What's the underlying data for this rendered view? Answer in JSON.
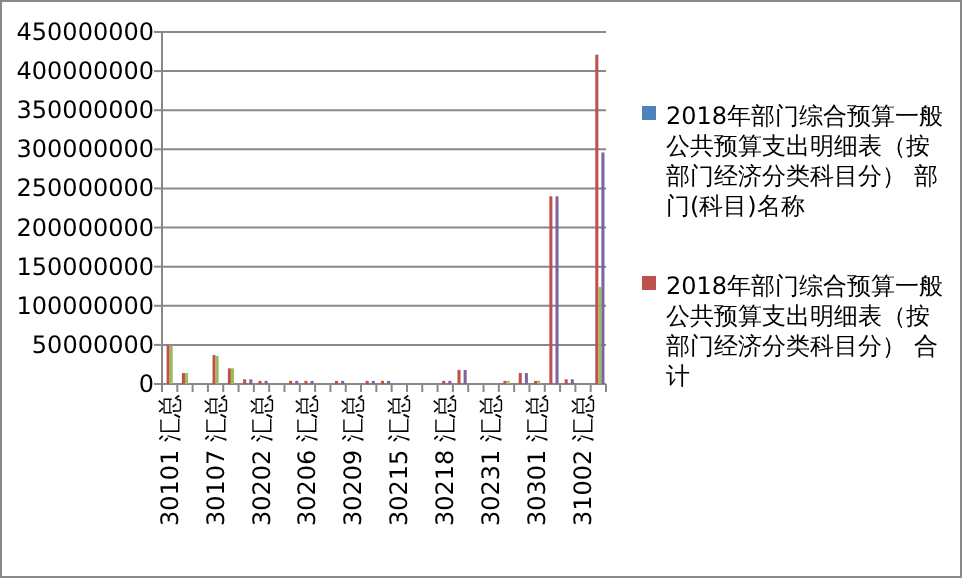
{
  "chart_data": {
    "type": "bar",
    "categories": [
      "30101 汇总",
      null,
      null,
      "30107 汇总",
      null,
      null,
      "30202 汇总",
      null,
      null,
      "30206 汇总",
      null,
      null,
      "30209 汇总",
      null,
      null,
      "30215 汇总",
      null,
      null,
      "30218 汇总",
      null,
      null,
      "30231 汇总",
      null,
      null,
      "30301 汇总",
      null,
      null,
      "31002 汇总",
      null
    ],
    "series": [
      {
        "name": "2018年部门综合预算一般公共预算支出明细表（按部门经济分类科目分） 部门(科目)名称",
        "color": "#4f81bd",
        "values": [
          0,
          0,
          0,
          0,
          0,
          0,
          0,
          0,
          0,
          0,
          0,
          0,
          0,
          0,
          0,
          0,
          0,
          0,
          0,
          0,
          0,
          0,
          0,
          0,
          0,
          0,
          0,
          0,
          0
        ]
      },
      {
        "name": "2018年部门综合预算一般公共预算支出明细表（按部门经济分类科目分） 合计",
        "color": "#c0504d",
        "values": [
          49000000,
          14000000,
          0,
          37000000,
          20000000,
          6000000,
          4000000,
          0,
          4000000,
          4000000,
          0,
          4000000,
          0,
          4000000,
          4000000,
          0,
          0,
          0,
          4000000,
          18000000,
          0,
          0,
          4000000,
          14000000,
          4000000,
          240000000,
          6000000,
          0,
          421000000
        ]
      },
      {
        "color": "#9bbb59",
        "values": [
          49000000,
          14000000,
          0,
          36000000,
          20000000,
          0,
          0,
          0,
          0,
          0,
          0,
          0,
          0,
          0,
          0,
          0,
          0,
          0,
          0,
          0,
          0,
          0,
          4000000,
          0,
          4000000,
          0,
          0,
          0,
          124000000
        ]
      },
      {
        "color": "#8064a2",
        "values": [
          0,
          0,
          0,
          0,
          0,
          6000000,
          4000000,
          0,
          4000000,
          4000000,
          0,
          4000000,
          0,
          4000000,
          4000000,
          0,
          0,
          0,
          4000000,
          18000000,
          0,
          0,
          0,
          14000000,
          0,
          240000000,
          6000000,
          0,
          296000000
        ]
      }
    ],
    "ylim": [
      0,
      450000000
    ],
    "yticks": [
      0,
      50000000,
      100000000,
      150000000,
      200000000,
      250000000,
      300000000,
      350000000,
      400000000,
      450000000
    ],
    "grid": "y",
    "legend": "right"
  }
}
